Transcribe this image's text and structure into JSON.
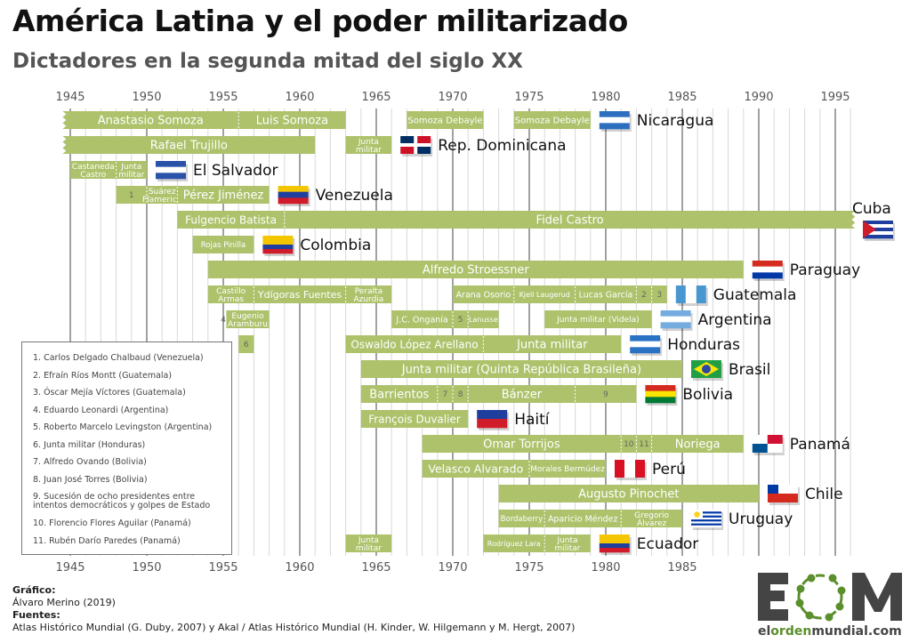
{
  "title": "América Latina y el poder militarizado",
  "subtitle": "Dictadores en la segunda mitad del siglo XX",
  "colors": {
    "bar": "#adc26b",
    "bar_text": "#ffffff",
    "grid_major": "#555555",
    "grid_minor": "#d8d8d8",
    "number_text": "#666666"
  },
  "chart_data": {
    "type": "timeline",
    "title": "América Latina y el poder militarizado",
    "subtitle": "Dictadores en la segunda mitad del siglo XX",
    "xlabel": "",
    "xlim": [
      1945,
      1997
    ],
    "x_ticks": [
      1945,
      1950,
      1955,
      1960,
      1965,
      1970,
      1975,
      1980,
      1985,
      1990,
      1995
    ],
    "grid": "yearly minor, every 5 years major",
    "rows": [
      {
        "country": "Nicaragua",
        "flag": "nicaragua-flag",
        "segments": [
          {
            "label": "Anastasio Somoza",
            "start": 1944.5,
            "end": 1956,
            "cut_start": true
          },
          {
            "label": "Luis Somoza",
            "start": 1956,
            "end": 1963
          },
          {
            "label": "Somoza Debayle",
            "start": 1967,
            "end": 1972
          },
          {
            "label": "Somoza Debayle",
            "start": 1974,
            "end": 1979
          }
        ]
      },
      {
        "country": "Rep. Dominicana",
        "flag": "dominican-republic-flag",
        "segments": [
          {
            "label": "Rafael Trujillo",
            "start": 1944.5,
            "end": 1961,
            "cut_start": true
          },
          {
            "label": "Junta militar",
            "start": 1963,
            "end": 1966
          }
        ]
      },
      {
        "country": "El Salvador",
        "flag": "el-salvador-flag",
        "segments": [
          {
            "label": "Castaneda Castro",
            "start": 1945,
            "end": 1948
          },
          {
            "label": "Junta militar",
            "start": 1948,
            "end": 1950
          }
        ]
      },
      {
        "country": "Venezuela",
        "flag": "venezuela-flag",
        "segments": [
          {
            "label": "1",
            "start": 1948,
            "end": 1950,
            "numbered": true
          },
          {
            "label": "Suárez Flamerich",
            "start": 1950,
            "end": 1952
          },
          {
            "label": "Pérez Jiménez",
            "start": 1952,
            "end": 1958
          }
        ]
      },
      {
        "country": "Cuba",
        "flag": "cuba-flag",
        "segments": [
          {
            "label": "Fulgencio Batista",
            "start": 1952,
            "end": 1959
          },
          {
            "label": "Fidel Castro",
            "start": 1959,
            "end": 1996.3,
            "cut_end": true
          }
        ]
      },
      {
        "country": "Colombia",
        "flag": "colombia-flag",
        "segments": [
          {
            "label": "Rojas Pinilla",
            "start": 1953,
            "end": 1957
          }
        ]
      },
      {
        "country": "Paraguay",
        "flag": "paraguay-flag",
        "segments": [
          {
            "label": "Alfredo Stroessner",
            "start": 1954,
            "end": 1989
          }
        ]
      },
      {
        "country": "Guatemala",
        "flag": "guatemala-flag",
        "segments": [
          {
            "label": "Castillo Armas",
            "start": 1954,
            "end": 1957
          },
          {
            "label": "Ydígoras Fuentes",
            "start": 1957,
            "end": 1963
          },
          {
            "label": "Peralta Azurdia",
            "start": 1963,
            "end": 1966
          },
          {
            "label": "Arana Osorio",
            "start": 1970,
            "end": 1974
          },
          {
            "label": "Kjell Laugerud",
            "start": 1974,
            "end": 1978
          },
          {
            "label": "Lucas García",
            "start": 1978,
            "end": 1982
          },
          {
            "label": "2",
            "start": 1982,
            "end": 1983,
            "numbered": true
          },
          {
            "label": "3",
            "start": 1983,
            "end": 1984,
            "numbered": true
          }
        ]
      },
      {
        "country": "Argentina",
        "flag": "argentina-flag",
        "segments": [
          {
            "label": "4",
            "start": 1954.8,
            "end": 1955.2,
            "numbered": true,
            "white": true
          },
          {
            "label": "Eugenio Aramburu",
            "start": 1955.2,
            "end": 1958
          },
          {
            "label": "J.C. Onganía",
            "start": 1966,
            "end": 1970
          },
          {
            "label": "5",
            "start": 1970,
            "end": 1971,
            "numbered": true
          },
          {
            "label": "Lanusse",
            "start": 1971,
            "end": 1973
          },
          {
            "label": "Junta militar (Videla)",
            "start": 1976,
            "end": 1983
          }
        ]
      },
      {
        "country": "Honduras",
        "flag": "honduras-flag",
        "segments": [
          {
            "label": "6",
            "start": 1956,
            "end": 1957,
            "numbered": true
          },
          {
            "label": "Oswaldo López Arellano",
            "start": 1963,
            "end": 1972
          },
          {
            "label": "Junta militar",
            "start": 1972,
            "end": 1981
          }
        ]
      },
      {
        "country": "Brasil",
        "flag": "brazil-flag",
        "segments": [
          {
            "label": "Junta militar (Quinta República Brasileña)",
            "start": 1964,
            "end": 1985
          }
        ]
      },
      {
        "country": "Bolivia",
        "flag": "bolivia-flag",
        "segments": [
          {
            "label": "Barrientos",
            "start": 1964,
            "end": 1969
          },
          {
            "label": "7",
            "start": 1969,
            "end": 1970,
            "numbered": true
          },
          {
            "label": "8",
            "start": 1970,
            "end": 1971,
            "numbered": true
          },
          {
            "label": "Bánzer",
            "start": 1971,
            "end": 1978
          },
          {
            "label": "9",
            "start": 1978,
            "end": 1982,
            "numbered": true
          }
        ]
      },
      {
        "country": "Haití",
        "flag": "haiti-flag",
        "segments": [
          {
            "label": "François Duvalier",
            "start": 1964,
            "end": 1971
          }
        ]
      },
      {
        "country": "Panamá",
        "flag": "panama-flag",
        "segments": [
          {
            "label": "Omar Torrijos",
            "start": 1968,
            "end": 1981
          },
          {
            "label": "10",
            "start": 1981,
            "end": 1982,
            "numbered": true
          },
          {
            "label": "11",
            "start": 1982,
            "end": 1983,
            "numbered": true
          },
          {
            "label": "Noriega",
            "start": 1983,
            "end": 1989
          }
        ]
      },
      {
        "country": "Perú",
        "flag": "peru-flag",
        "segments": [
          {
            "label": "Velasco Alvarado",
            "start": 1968,
            "end": 1975
          },
          {
            "label": "Morales Bermúdez",
            "start": 1975,
            "end": 1980
          }
        ]
      },
      {
        "country": "Chile",
        "flag": "chile-flag",
        "segments": [
          {
            "label": "Augusto Pinochet",
            "start": 1973,
            "end": 1990
          }
        ]
      },
      {
        "country": "Uruguay",
        "flag": "uruguay-flag",
        "segments": [
          {
            "label": "Bordaberry",
            "start": 1973,
            "end": 1976
          },
          {
            "label": "Aparicio Méndez",
            "start": 1976,
            "end": 1981
          },
          {
            "label": "Gregorio Álvarez",
            "start": 1981,
            "end": 1985
          }
        ]
      },
      {
        "country": "Ecuador",
        "flag": "ecuador-flag",
        "segments": [
          {
            "label": "Junta militar",
            "start": 1963,
            "end": 1966
          },
          {
            "label": "Rodríguez Lara",
            "start": 1972,
            "end": 1976
          },
          {
            "label": "Junta militar",
            "start": 1976,
            "end": 1979
          }
        ]
      }
    ],
    "legend": [
      "1. Carlos Delgado Chalbaud (Venezuela)",
      "2. Efraín Ríos Montt (Guatemala)",
      "3. Óscar Mejía Víctores (Guatemala)",
      "4. Eduardo Leonardi (Argentina)",
      "5. Roberto Marcelo Levingston (Argentina)",
      "6. Junta militar (Honduras)",
      "7. Alfredo Ovando (Bolivia)",
      "8. Juan José Torres (Bolivia)",
      "9. Sucesión de ocho presidentes entre intentos democráticos y golpes de Estado",
      "10. Florencio Flores Aguilar (Panamá)",
      "11. Rubén Darío Paredes (Panamá)"
    ]
  },
  "legend_lines": [
    [
      "1. Carlos Delgado Chalbaud (Venezuela)"
    ],
    [
      "2. Efraín Ríos Montt (Guatemala)"
    ],
    [
      "3. Óscar Mejía Víctores (Guatemala)"
    ],
    [
      "4. Eduardo Leonardi (Argentina)"
    ],
    [
      "5. Roberto Marcelo Levingston (Argentina)"
    ],
    [
      "6. Junta militar (Honduras)"
    ],
    [
      "7. Alfredo Ovando (Bolivia)"
    ],
    [
      "8. Juan José Torres (Bolivia)"
    ],
    [
      "9. Sucesión de ocho presidentes entre",
      "intentos democráticos y golpes de Estado"
    ],
    [
      "10. Florencio Flores Aguilar (Panamá)"
    ],
    [
      "11. Rubén Darío Paredes (Panamá)"
    ]
  ],
  "credits": {
    "chart_heading": "Gráfico:",
    "chart_author": "Álvaro Merino (2019)",
    "sources_heading": "Fuentes:",
    "sources": "Atlas Histórico Mundial (G. Duby, 2007) y Akal / Atlas Histórico Mundial (H. Kinder, W. Hilgemann y M. Hergt, 2007)"
  },
  "logo": {
    "letters": "EOM",
    "url_pre": "el",
    "url_mid": "orden",
    "url_post": "mundial.com"
  }
}
